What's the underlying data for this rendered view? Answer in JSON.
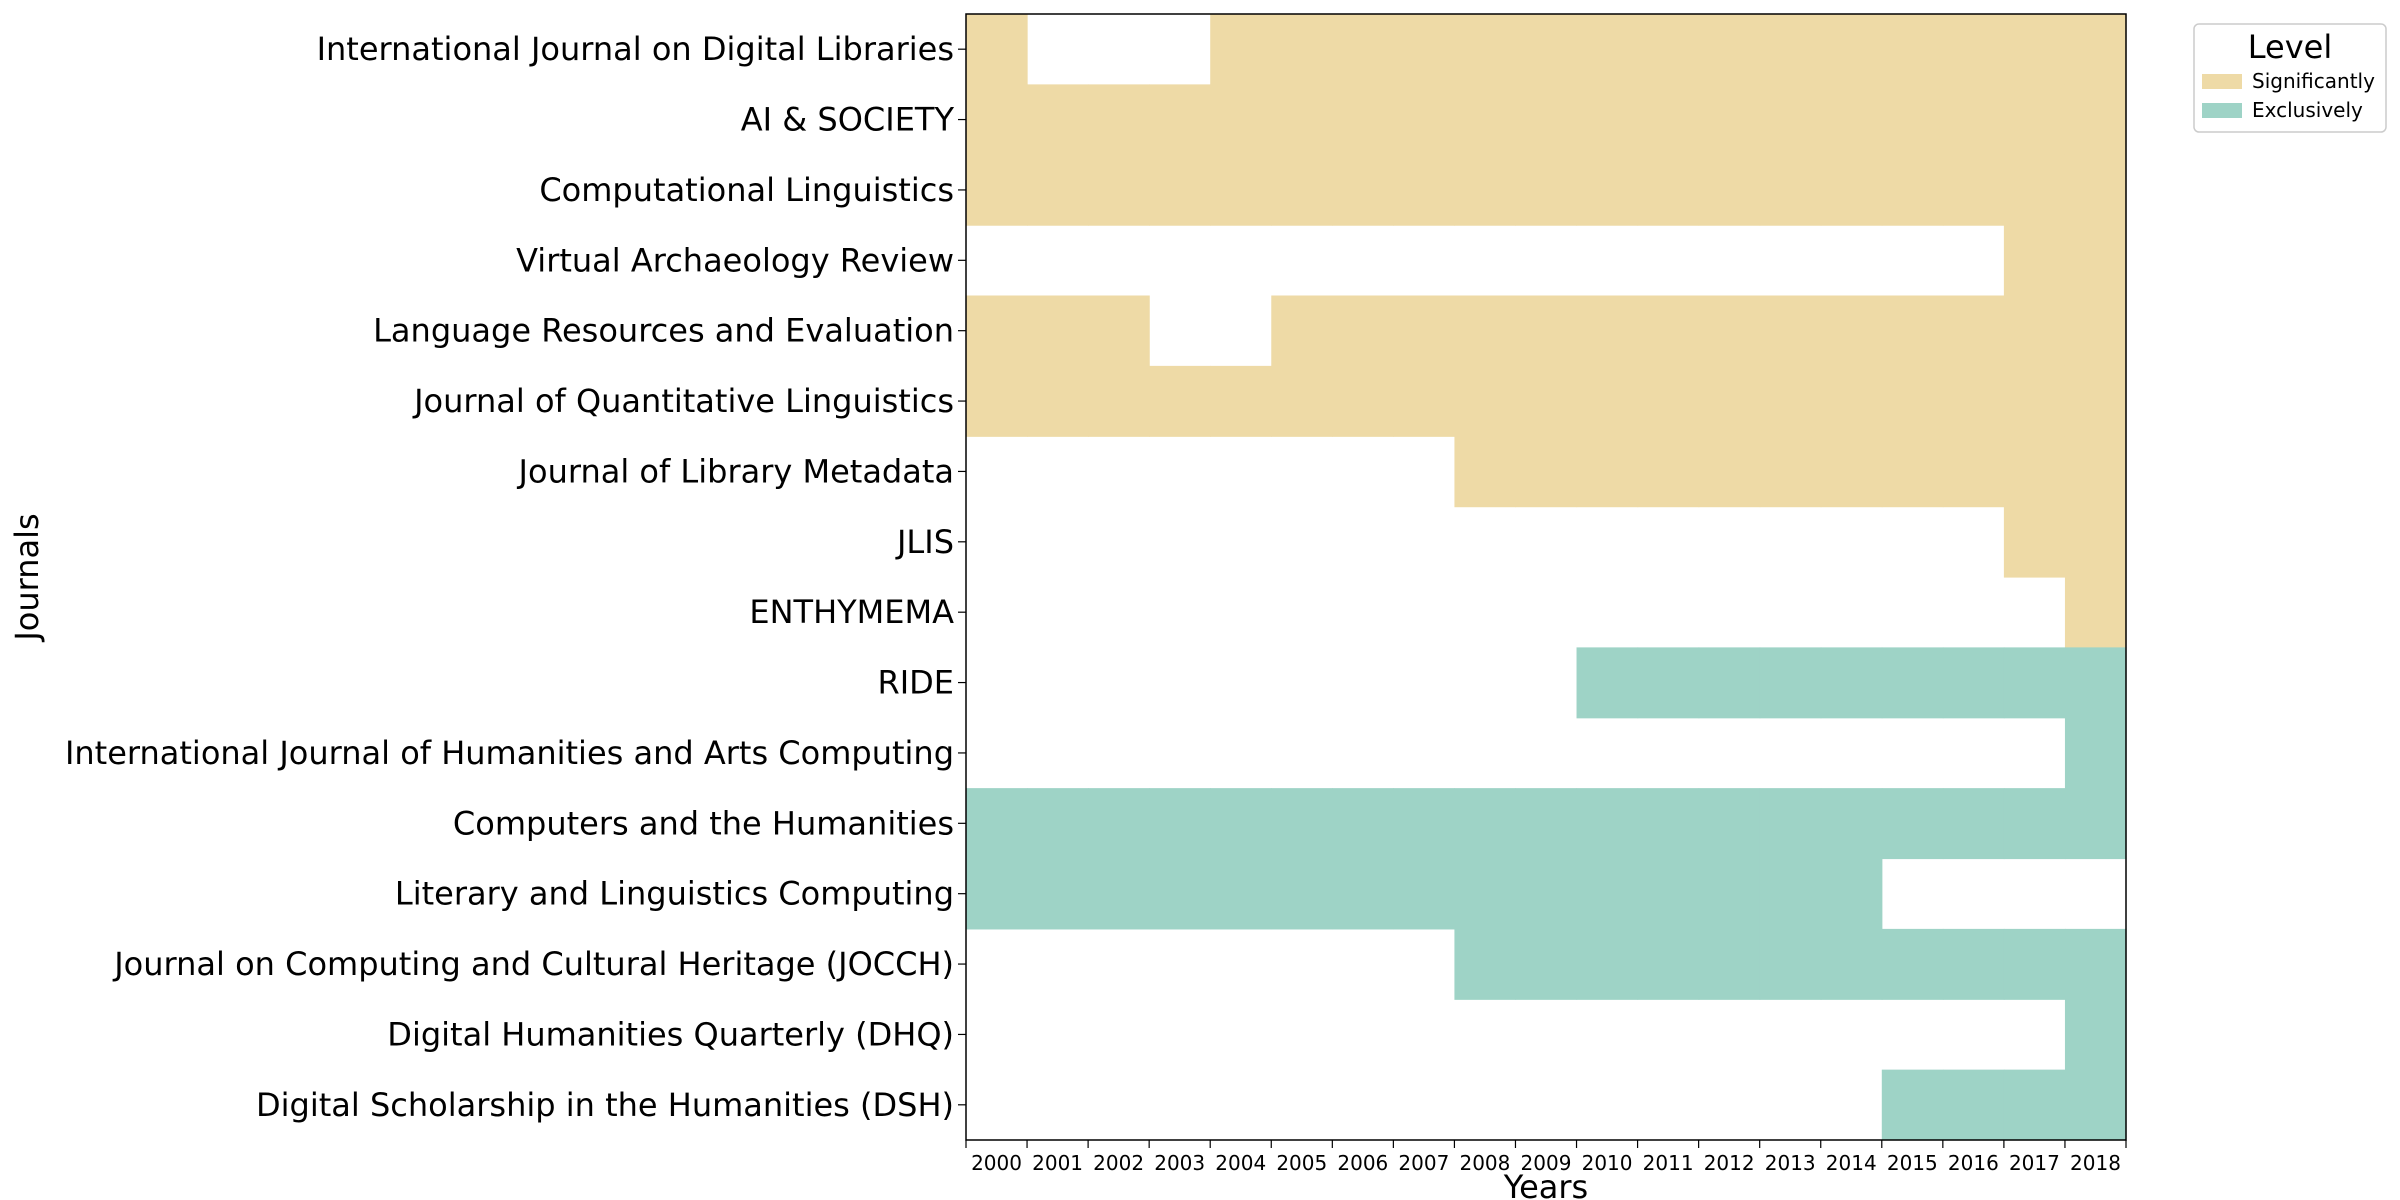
{
  "chart_data": {
    "type": "heatmap",
    "title": "",
    "xlabel": "Years",
    "ylabel": "Journals",
    "grid": false,
    "legend_position": "outside-top-right",
    "legend": {
      "title": "Level",
      "entries": [
        {
          "level": 1,
          "label": "Significantly",
          "color": "#eedaa6"
        },
        {
          "level": 2,
          "label": "Exclusively",
          "color": "#9ed3c6"
        }
      ]
    },
    "x": [
      "2000",
      "2001",
      "2002",
      "2003",
      "2004",
      "2005",
      "2006",
      "2007",
      "2008",
      "2009",
      "2010",
      "2011",
      "2012",
      "2013",
      "2014",
      "2015",
      "2016",
      "2017",
      "2018"
    ],
    "y": [
      "International Journal on Digital Libraries",
      "AI & SOCIETY",
      "Computational Linguistics",
      "Virtual Archaeology Review",
      "Language Resources and Evaluation",
      "Journal of Quantitative Linguistics",
      "Journal of Library Metadata",
      "JLIS",
      "ENTHYMEMA",
      "RIDE",
      "International Journal of Humanities and Arts Computing",
      "Computers and the Humanities",
      "Literary and Linguistics Computing",
      "Journal on Computing and Cultural Heritage (JOCCH)",
      "Digital Humanities Quarterly (DHQ)",
      "Digital Scholarship in the Humanities (DSH)"
    ],
    "values": [
      [
        1,
        0,
        0,
        0,
        1,
        1,
        1,
        1,
        1,
        1,
        1,
        1,
        1,
        1,
        1,
        1,
        1,
        1,
        1
      ],
      [
        1,
        1,
        1,
        1,
        1,
        1,
        1,
        1,
        1,
        1,
        1,
        1,
        1,
        1,
        1,
        1,
        1,
        1,
        1
      ],
      [
        1,
        1,
        1,
        1,
        1,
        1,
        1,
        1,
        1,
        1,
        1,
        1,
        1,
        1,
        1,
        1,
        1,
        1,
        1
      ],
      [
        0,
        0,
        0,
        0,
        0,
        0,
        0,
        0,
        0,
        0,
        0,
        0,
        0,
        0,
        0,
        0,
        0,
        1,
        1
      ],
      [
        1,
        1,
        1,
        0,
        0,
        1,
        1,
        1,
        1,
        1,
        1,
        1,
        1,
        1,
        1,
        1,
        1,
        1,
        1
      ],
      [
        1,
        1,
        1,
        1,
        1,
        1,
        1,
        1,
        1,
        1,
        1,
        1,
        1,
        1,
        1,
        1,
        1,
        1,
        1
      ],
      [
        0,
        0,
        0,
        0,
        0,
        0,
        0,
        0,
        1,
        1,
        1,
        1,
        1,
        1,
        1,
        1,
        1,
        1,
        1
      ],
      [
        0,
        0,
        0,
        0,
        0,
        0,
        0,
        0,
        0,
        0,
        0,
        0,
        0,
        0,
        0,
        0,
        0,
        1,
        1
      ],
      [
        0,
        0,
        0,
        0,
        0,
        0,
        0,
        0,
        0,
        0,
        0,
        0,
        0,
        0,
        0,
        0,
        0,
        0,
        1
      ],
      [
        0,
        0,
        0,
        0,
        0,
        0,
        0,
        0,
        0,
        0,
        2,
        2,
        2,
        2,
        2,
        2,
        2,
        2,
        2
      ],
      [
        0,
        0,
        0,
        0,
        0,
        0,
        0,
        0,
        0,
        0,
        0,
        0,
        0,
        0,
        0,
        0,
        0,
        0,
        2
      ],
      [
        2,
        2,
        2,
        2,
        2,
        2,
        2,
        2,
        2,
        2,
        2,
        2,
        2,
        2,
        2,
        2,
        2,
        2,
        2
      ],
      [
        2,
        2,
        2,
        2,
        2,
        2,
        2,
        2,
        2,
        2,
        2,
        2,
        2,
        2,
        2,
        0,
        0,
        0,
        0
      ],
      [
        0,
        0,
        0,
        0,
        0,
        0,
        0,
        0,
        2,
        2,
        2,
        2,
        2,
        2,
        2,
        2,
        2,
        2,
        2
      ],
      [
        0,
        0,
        0,
        0,
        0,
        0,
        0,
        0,
        0,
        0,
        0,
        0,
        0,
        0,
        0,
        0,
        0,
        0,
        2
      ],
      [
        0,
        0,
        0,
        0,
        0,
        0,
        0,
        0,
        0,
        0,
        0,
        0,
        0,
        0,
        0,
        2,
        2,
        2,
        2
      ]
    ]
  }
}
